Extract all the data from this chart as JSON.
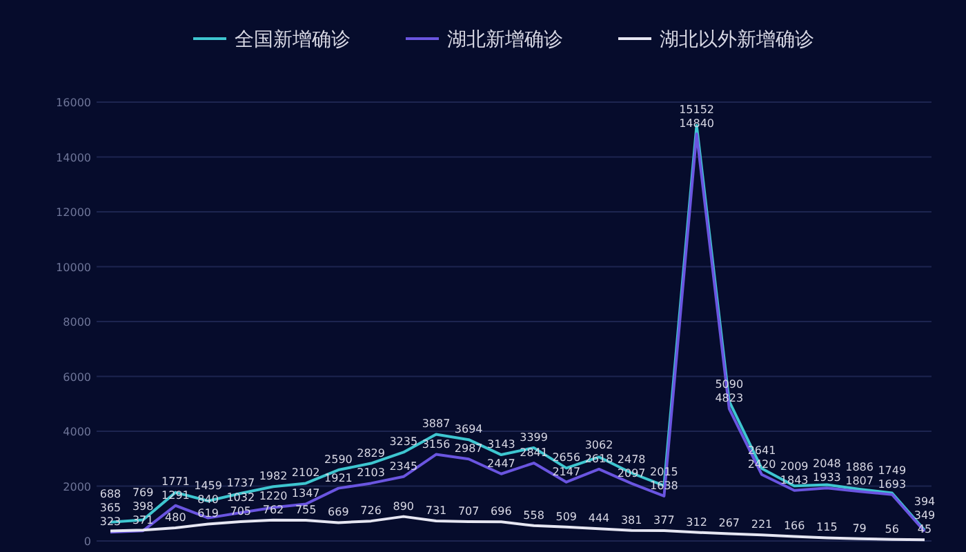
{
  "chart_data": {
    "type": "line",
    "categories": [
      null,
      null,
      null,
      null,
      null,
      null,
      null,
      null,
      null,
      null,
      null,
      null,
      null,
      null,
      null,
      null,
      null,
      null,
      null,
      null,
      null,
      null,
      null,
      null,
      null,
      null
    ],
    "series": [
      {
        "name": "全国新增确诊",
        "color": "#3ec6d0",
        "values": [
          688,
          769,
          1771,
          1459,
          1737,
          1982,
          2102,
          2590,
          2829,
          3235,
          3887,
          3694,
          3143,
          3399,
          2656,
          3062,
          2478,
          2015,
          15152,
          5090,
          2641,
          2009,
          2048,
          1886,
          1749,
          394
        ]
      },
      {
        "name": "湖北新增确诊",
        "color": "#6a55e0",
        "values": [
          323,
          371,
          1291,
          840,
          1032,
          1220,
          1347,
          1921,
          2103,
          2345,
          3156,
          2987,
          2447,
          2841,
          2147,
          2618,
          2097,
          1638,
          14840,
          4823,
          2420,
          1843,
          1933,
          1807,
          1693,
          349
        ]
      },
      {
        "name": "湖北以外新增确诊",
        "color": "#e6e6f2",
        "values": [
          365,
          398,
          480,
          619,
          705,
          762,
          755,
          669,
          726,
          890,
          731,
          707,
          696,
          558,
          509,
          444,
          381,
          377,
          312,
          267,
          221,
          166,
          115,
          79,
          56,
          45
        ]
      }
    ],
    "ylim": [
      0,
      16000
    ],
    "yticks": [
      0,
      2000,
      4000,
      6000,
      8000,
      10000,
      12000,
      14000,
      16000
    ],
    "grid": "y",
    "legend": "top",
    "data_labels": true
  }
}
